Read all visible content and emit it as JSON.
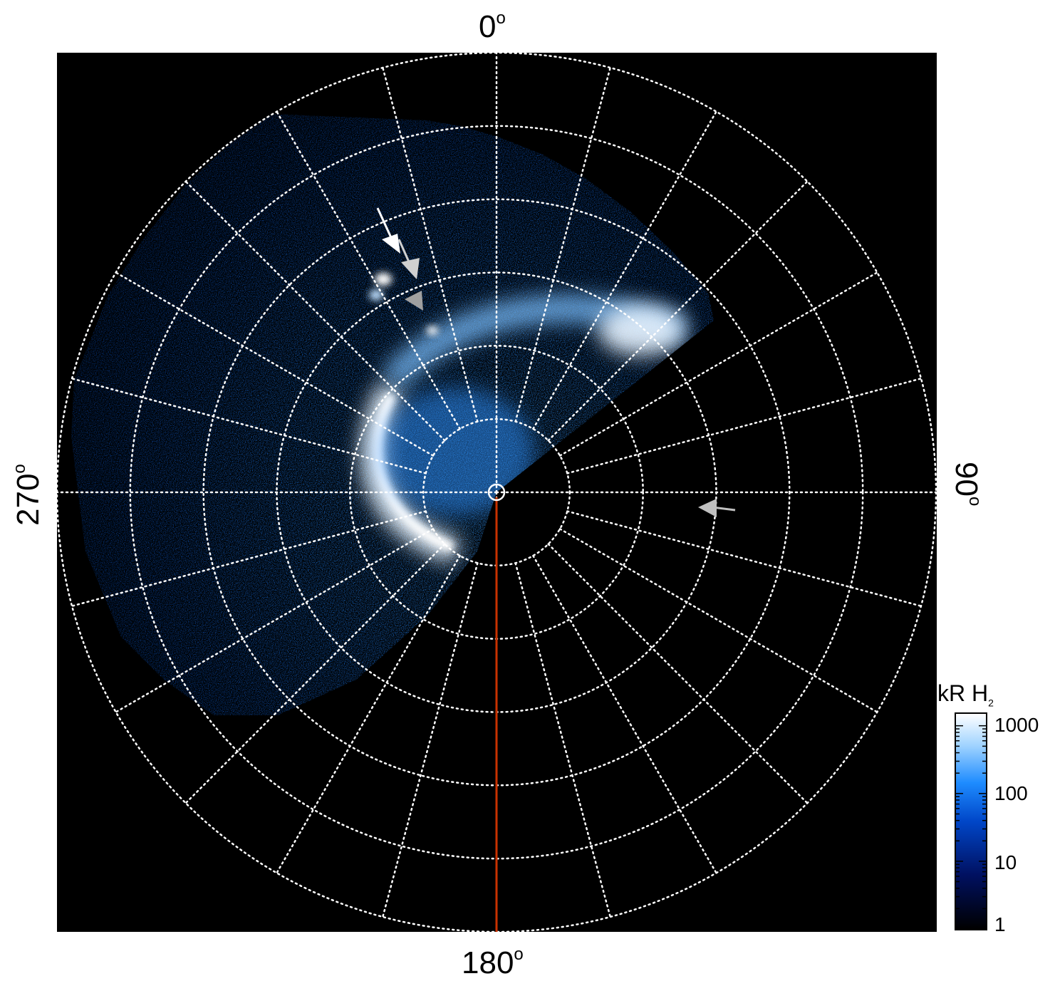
{
  "axis_labels": {
    "top": "0",
    "bottom": "180",
    "left": "270",
    "right": "90",
    "degree_symbol": "o"
  },
  "colorbar": {
    "title_main": "kR H",
    "title_sub": "2",
    "ticks": [
      "1000",
      "100",
      "10",
      "1"
    ],
    "scale": "log",
    "range": [
      1,
      1500
    ],
    "colors": [
      "#000000",
      "#001060",
      "#0046c8",
      "#1e8cff",
      "#9ed2ff",
      "#ffffff"
    ]
  },
  "colors": {
    "background": "#000000",
    "grid": "#ffffff",
    "meridian_line": "#c83200",
    "arrow_white": "#ffffff",
    "arrow_gray": "#a0a0a0"
  },
  "grid": {
    "style": "dotted",
    "meridian_spacing_deg": 15,
    "ring_count": 6
  }
}
